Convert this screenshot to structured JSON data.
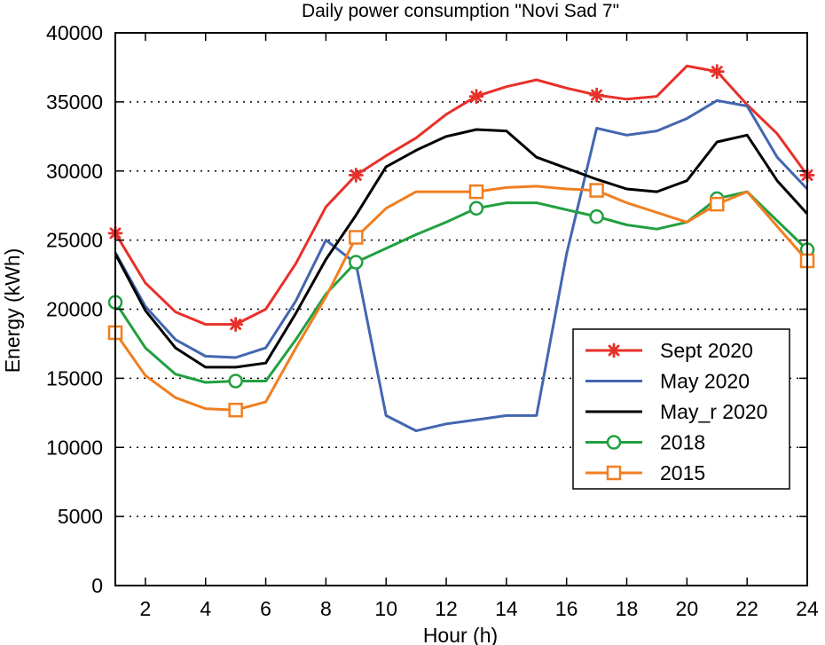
{
  "chart_data": {
    "type": "line",
    "title": "Daily power consumption \"Novi Sad 7\"",
    "xlabel": "Hour (h)",
    "ylabel": "Energy (kWh)",
    "xlim": [
      1,
      24
    ],
    "ylim": [
      0,
      40000
    ],
    "xticks": [
      2,
      4,
      6,
      8,
      10,
      12,
      14,
      16,
      18,
      20,
      22,
      24
    ],
    "yticks": [
      0,
      5000,
      10000,
      15000,
      20000,
      25000,
      30000,
      35000,
      40000
    ],
    "grid": "horizontal dotted",
    "legend_position": "right",
    "x": [
      1,
      2,
      3,
      4,
      5,
      6,
      7,
      8,
      9,
      10,
      11,
      12,
      13,
      14,
      15,
      16,
      17,
      18,
      19,
      20,
      21,
      22,
      23,
      24
    ],
    "series": [
      {
        "name": "Sept 2020",
        "color": "#e8302a",
        "marker": "star",
        "marker_x": [
          1,
          5,
          9,
          13,
          17,
          21,
          24
        ],
        "values": [
          25500,
          21900,
          19800,
          18900,
          18900,
          20000,
          23300,
          27400,
          29700,
          31100,
          32400,
          34100,
          35400,
          36100,
          36600,
          36000,
          35500,
          35200,
          35400,
          37600,
          37200,
          34800,
          32700,
          29700
        ]
      },
      {
        "name": "May 2020",
        "color": "#4466b0",
        "marker": "none",
        "marker_x": [],
        "values": [
          24100,
          20200,
          17800,
          16600,
          16500,
          17200,
          20600,
          25000,
          23300,
          12300,
          11200,
          11700,
          12000,
          12300,
          12300,
          24000,
          33100,
          32600,
          32900,
          33800,
          35100,
          34700,
          31000,
          28700
        ]
      },
      {
        "name": "May_r 2020",
        "color": "#000000",
        "marker": "none",
        "marker_x": [],
        "values": [
          24000,
          19900,
          17200,
          15800,
          15800,
          16100,
          19700,
          23600,
          26800,
          30300,
          31500,
          32500,
          33000,
          32900,
          31000,
          30200,
          29400,
          28700,
          28500,
          29300,
          32100,
          32600,
          29300,
          26900
        ]
      },
      {
        "name": "2018",
        "color": "#20a040",
        "marker": "circle",
        "marker_x": [
          1,
          5,
          9,
          13,
          17,
          21,
          24
        ],
        "values": [
          20500,
          17200,
          15300,
          14700,
          14800,
          14800,
          17800,
          21100,
          23400,
          24400,
          25400,
          26300,
          27300,
          27700,
          27700,
          27200,
          26700,
          26100,
          25800,
          26300,
          28000,
          28500,
          26400,
          24300
        ]
      },
      {
        "name": "2015",
        "color": "#f07e20",
        "marker": "square",
        "marker_x": [
          1,
          5,
          9,
          13,
          17,
          21,
          24
        ],
        "values": [
          18300,
          15200,
          13600,
          12800,
          12700,
          13300,
          17200,
          20900,
          25200,
          27300,
          28500,
          28500,
          28500,
          28800,
          28900,
          28700,
          28600,
          27700,
          27000,
          26300,
          27600,
          28500,
          26000,
          23500
        ]
      }
    ]
  }
}
